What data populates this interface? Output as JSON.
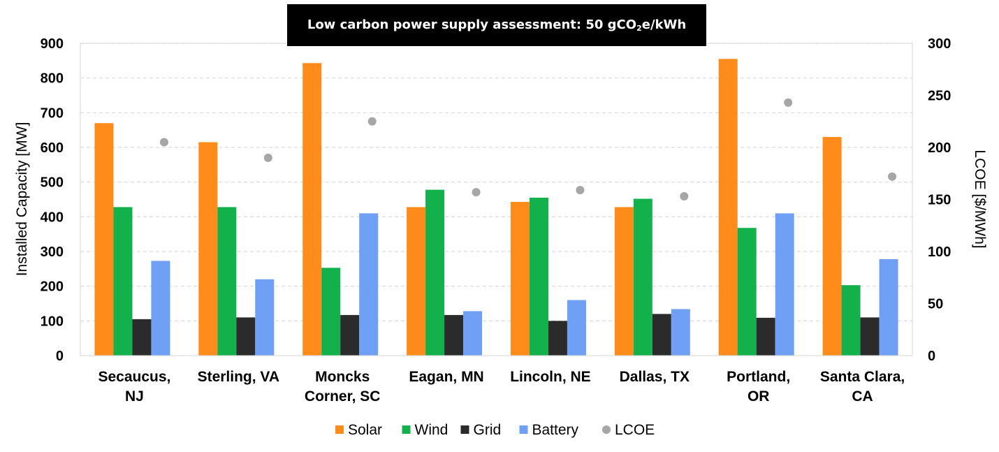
{
  "chart_data": {
    "type": "bar",
    "title": {
      "prefix": "Low carbon power supply assessment: 50 gCO",
      "subscript": "2",
      "suffix": "e/kWh"
    },
    "categories": [
      [
        "Secaucus,",
        "NJ"
      ],
      [
        "Sterling, VA"
      ],
      [
        "Moncks",
        "Corner, SC"
      ],
      [
        "Eagan, MN"
      ],
      [
        "Lincoln, NE"
      ],
      [
        "Dallas, TX"
      ],
      [
        "Portland,",
        "OR"
      ],
      [
        "Santa Clara,",
        "CA"
      ]
    ],
    "ylabel_left": "Installed Capacity [MW]",
    "ylabel_right": "LCOE [$/MWh]",
    "ylim_left": [
      0,
      900
    ],
    "yticks_left": [
      0,
      100,
      200,
      300,
      400,
      500,
      600,
      700,
      800,
      900
    ],
    "ylim_right": [
      0,
      300
    ],
    "yticks_right": [
      0,
      50,
      100,
      150,
      200,
      250,
      300
    ],
    "grid": true,
    "legend_position": "bottom",
    "series": [
      {
        "name": "Solar",
        "axis": "left",
        "color": "#FF8C1A",
        "values": [
          670,
          615,
          843,
          428,
          443,
          428,
          855,
          630
        ]
      },
      {
        "name": "Wind",
        "axis": "left",
        "color": "#12B14B",
        "values": [
          428,
          428,
          253,
          478,
          455,
          452,
          368,
          203
        ]
      },
      {
        "name": "Grid",
        "axis": "left",
        "color": "#2B2B2B",
        "values": [
          105,
          110,
          117,
          117,
          100,
          120,
          109,
          110
        ]
      },
      {
        "name": "Battery",
        "axis": "left",
        "color": "#6FA0F5",
        "values": [
          273,
          220,
          410,
          128,
          160,
          134,
          410,
          278
        ]
      },
      {
        "name": "LCOE",
        "axis": "right",
        "type": "scatter",
        "color": "#A6A6A6",
        "values": [
          205,
          190,
          225,
          157,
          159,
          153,
          243,
          172
        ]
      }
    ]
  }
}
